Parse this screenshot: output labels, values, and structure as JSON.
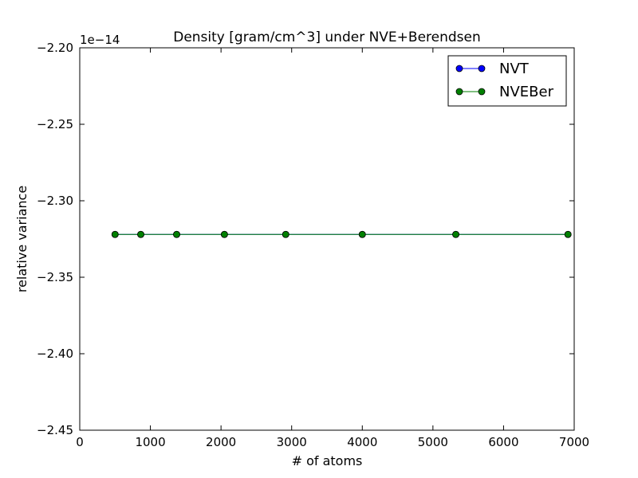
{
  "chart_data": {
    "type": "line",
    "title": "Density [gram/cm^3] under NVE+Berendsen",
    "xlabel": "# of atoms",
    "ylabel": "relative variance",
    "y_offset_label": "1e−14",
    "xlim": [
      0,
      7000
    ],
    "ylim": [
      -2.45,
      -2.2
    ],
    "x_ticks": [
      0,
      1000,
      2000,
      3000,
      4000,
      5000,
      6000,
      7000
    ],
    "x_tick_labels": [
      "0",
      "1000",
      "2000",
      "3000",
      "4000",
      "5000",
      "6000",
      "7000"
    ],
    "y_ticks": [
      -2.2,
      -2.25,
      -2.3,
      -2.35,
      -2.4,
      -2.45
    ],
    "y_tick_labels": [
      "−2.20",
      "−2.25",
      "−2.30",
      "−2.35",
      "−2.40",
      "−2.45"
    ],
    "grid": false,
    "legend_position": "top-right",
    "series": [
      {
        "name": "NVT",
        "color": "#0000ff",
        "marker": "circle",
        "x": [
          500,
          864,
          1372,
          2048,
          2916,
          4000,
          5324,
          6912
        ],
        "y": [
          -2.322,
          -2.322,
          -2.322,
          -2.322,
          -2.322,
          -2.322,
          -2.322,
          -2.322
        ]
      },
      {
        "name": "NVEBer",
        "color": "#008000",
        "marker": "circle",
        "x": [
          500,
          864,
          1372,
          2048,
          2916,
          4000,
          5324,
          6912
        ],
        "y": [
          -2.322,
          -2.322,
          -2.322,
          -2.322,
          -2.322,
          -2.322,
          -2.322,
          -2.322
        ]
      }
    ]
  }
}
